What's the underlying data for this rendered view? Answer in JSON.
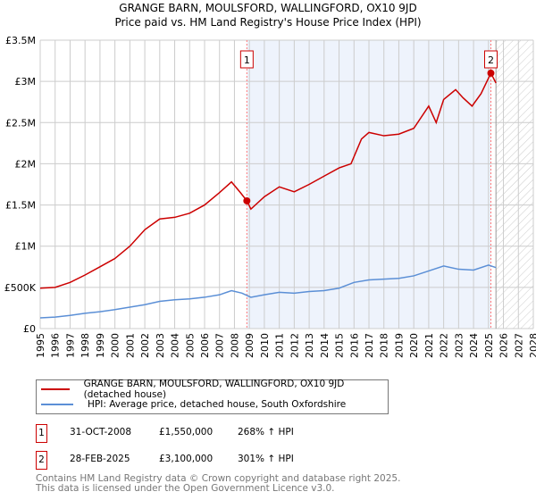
{
  "chart_data": {
    "type": "line",
    "title": "GRANGE BARN, MOULSFORD, WALLINGFORD, OX10 9JD",
    "subtitle": "Price paid vs. HM Land Registry's House Price Index (HPI)",
    "xlim": [
      1995,
      2028
    ],
    "ylim": [
      0,
      3500000
    ],
    "x_ticks": [
      "1995",
      "1996",
      "1997",
      "1998",
      "1999",
      "2000",
      "2001",
      "2002",
      "2003",
      "2004",
      "2005",
      "2006",
      "2007",
      "2008",
      "2009",
      "2010",
      "2011",
      "2012",
      "2013",
      "2014",
      "2015",
      "2016",
      "2017",
      "2018",
      "2019",
      "2020",
      "2021",
      "2022",
      "2023",
      "2024",
      "2025",
      "2026",
      "2027",
      "2028"
    ],
    "y_ticks": [
      {
        "v": 0,
        "label": "£0"
      },
      {
        "v": 500000,
        "label": "£500K"
      },
      {
        "v": 1000000,
        "label": "£1M"
      },
      {
        "v": 1500000,
        "label": "£1.5M"
      },
      {
        "v": 2000000,
        "label": "£2M"
      },
      {
        "v": 2500000,
        "label": "£2.5M"
      },
      {
        "v": 3000000,
        "label": "£3M"
      },
      {
        "v": 3500000,
        "label": "£3.5M"
      }
    ],
    "grid": true,
    "shaded_span": [
      2008.83,
      2025.16
    ],
    "hatched_from": 2025.5,
    "series": [
      {
        "name": "GRANGE BARN, MOULSFORD, WALLINGFORD, OX10 9JD (detached house)",
        "color": "#cc0000",
        "x": [
          1995,
          1996,
          1997,
          1998,
          1999,
          2000,
          2001,
          2002,
          2003,
          2004,
          2005,
          2006,
          2007,
          2007.8,
          2008.4,
          2008.83,
          2009.1,
          2010,
          2011,
          2012,
          2013,
          2014,
          2015,
          2015.8,
          2016.5,
          2017,
          2018,
          2019,
          2020,
          2021,
          2021.5,
          2022,
          2022.8,
          2023.3,
          2023.9,
          2024.5,
          2025.16,
          2025.5
        ],
        "y": [
          490000,
          500000,
          560000,
          650000,
          750000,
          850000,
          1000000,
          1200000,
          1330000,
          1350000,
          1400000,
          1500000,
          1650000,
          1780000,
          1650000,
          1550000,
          1450000,
          1600000,
          1720000,
          1660000,
          1750000,
          1850000,
          1950000,
          2000000,
          2300000,
          2380000,
          2340000,
          2360000,
          2430000,
          2700000,
          2500000,
          2780000,
          2900000,
          2800000,
          2700000,
          2850000,
          3100000,
          2980000
        ]
      },
      {
        "name": "HPI: Average price, detached house, South Oxfordshire",
        "color": "#5b8fd6",
        "x": [
          1995,
          1996,
          1997,
          1998,
          1999,
          2000,
          2001,
          2002,
          2003,
          2004,
          2005,
          2006,
          2007,
          2007.8,
          2008.5,
          2009.1,
          2010,
          2011,
          2012,
          2013,
          2014,
          2015,
          2016,
          2017,
          2018,
          2019,
          2020,
          2021,
          2022,
          2023,
          2024,
          2025,
          2025.5
        ],
        "y": [
          130000,
          140000,
          160000,
          185000,
          205000,
          230000,
          260000,
          290000,
          330000,
          350000,
          360000,
          380000,
          410000,
          460000,
          430000,
          380000,
          410000,
          440000,
          430000,
          450000,
          460000,
          490000,
          560000,
          590000,
          600000,
          610000,
          640000,
          700000,
          760000,
          720000,
          710000,
          770000,
          740000
        ]
      }
    ],
    "annotations": [
      {
        "label": "1",
        "x": 2008.83,
        "y": 1550000
      },
      {
        "label": "2",
        "x": 2025.16,
        "y": 3100000
      }
    ]
  },
  "legend": [
    "GRANGE BARN, MOULSFORD, WALLINGFORD, OX10 9JD (detached house)",
    "HPI: Average price, detached house, South Oxfordshire"
  ],
  "sales": [
    {
      "num": "1",
      "date": "31-OCT-2008",
      "price": "£1,550,000",
      "hpi": "268% ↑ HPI"
    },
    {
      "num": "2",
      "date": "28-FEB-2025",
      "price": "£3,100,000",
      "hpi": "301% ↑ HPI"
    }
  ],
  "footer": [
    "Contains HM Land Registry data © Crown copyright and database right 2025.",
    "This data is licensed under the Open Government Licence v3.0."
  ],
  "colors": {
    "price": "#cc0000",
    "hpi": "#5b8fd6",
    "shade": "#eef3fc"
  }
}
